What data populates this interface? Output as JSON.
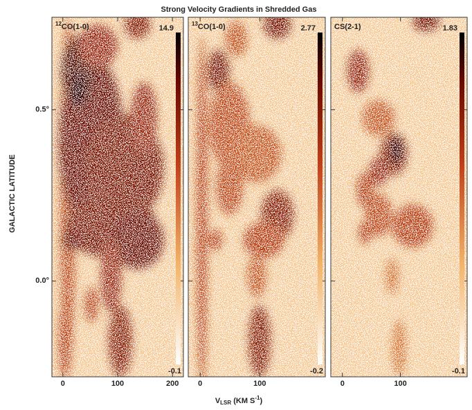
{
  "figure": {
    "title": "Strong Velocity Gradients in Shredded Gas",
    "ylabel": "GALACTIC LATITUDE",
    "xlabel": [
      "V",
      "LSR",
      " (KM S",
      "-1",
      ")"
    ]
  },
  "chart_data": [
    {
      "type": "heatmap",
      "label": [
        "12",
        "CO(1-0)"
      ],
      "clim": [
        -0.1,
        14.9
      ],
      "xlim": [
        -20,
        220
      ],
      "xticks": [
        0,
        100,
        200
      ],
      "ylim": [
        -0.28,
        0.77
      ],
      "yticks": [
        {
          "value": 0.5,
          "label": "0.5°"
        },
        {
          "value": 0,
          "label": "0.0°"
        }
      ]
    },
    {
      "type": "heatmap",
      "label": [
        "13",
        "CO(1-0)"
      ],
      "clim": [
        -0.2,
        2.77
      ],
      "xlim": [
        -20,
        210
      ],
      "xticks": [
        0,
        100
      ],
      "ylim": [
        -0.28,
        0.77
      ]
    },
    {
      "type": "heatmap",
      "label": [
        "CS(2-1)"
      ],
      "clim": [
        -0.1,
        1.83
      ],
      "xlim": [
        -20,
        215
      ],
      "xticks": [
        0,
        100
      ],
      "ylim": [
        -0.28,
        0.77
      ]
    }
  ]
}
